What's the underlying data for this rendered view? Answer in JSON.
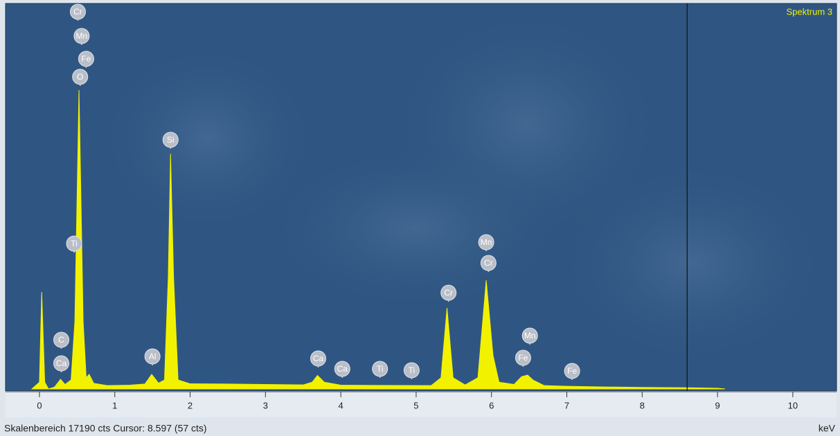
{
  "chart_data": {
    "type": "area",
    "title": "Spektrum 3",
    "x_label": "keV",
    "status": "Skalenbereich 17190 cts Cursor: 8.597  (57 cts)",
    "color": "#f2f200",
    "xlim": [
      -0.45,
      10.58
    ],
    "ylim": [
      0,
      17190
    ],
    "xticks": [
      0,
      1,
      2,
      3,
      4,
      5,
      6,
      7,
      8,
      9,
      10
    ],
    "cursor": 8.597,
    "x": [
      -0.1,
      0.0,
      0.03,
      0.07,
      0.12,
      0.2,
      0.28,
      0.34,
      0.42,
      0.47,
      0.525,
      0.58,
      0.62,
      0.66,
      0.72,
      0.9,
      1.2,
      1.4,
      1.49,
      1.58,
      1.66,
      1.71,
      1.74,
      1.78,
      1.84,
      2.0,
      2.5,
      3.0,
      3.5,
      3.62,
      3.69,
      3.78,
      4.0,
      4.5,
      5.2,
      5.33,
      5.41,
      5.49,
      5.65,
      5.82,
      5.93,
      6.02,
      6.1,
      6.3,
      6.4,
      6.48,
      6.55,
      6.7,
      7.0,
      7.5,
      8.0,
      8.6,
      9.0,
      9.1
    ],
    "values": [
      0,
      300,
      4320,
      300,
      0,
      80,
      430,
      200,
      400,
      3000,
      13330,
      3000,
      500,
      650,
      250,
      150,
      170,
      220,
      650,
      260,
      400,
      5000,
      10490,
      5000,
      400,
      230,
      220,
      200,
      180,
      300,
      600,
      300,
      170,
      160,
      150,
      500,
      3610,
      500,
      180,
      500,
      4845,
      1500,
      300,
      200,
      550,
      620,
      400,
      150,
      120,
      90,
      70,
      55,
      30,
      0
    ],
    "markers": [
      {
        "label": "Cr",
        "x": 0.51,
        "y": 16665
      },
      {
        "label": "Mn",
        "x": 0.56,
        "y": 15585
      },
      {
        "label": "Fe",
        "x": 0.62,
        "y": 14567
      },
      {
        "label": "O",
        "x": 0.54,
        "y": 13764
      },
      {
        "label": "Ti",
        "x": 0.46,
        "y": 6327
      },
      {
        "label": "C",
        "x": 0.29,
        "y": 2037
      },
      {
        "label": "Ca",
        "x": 0.29,
        "y": 988
      },
      {
        "label": "Al",
        "x": 1.5,
        "y": 1296
      },
      {
        "label": "Si",
        "x": 1.74,
        "y": 10956
      },
      {
        "label": "Ca",
        "x": 3.7,
        "y": 1204
      },
      {
        "label": "Ca",
        "x": 4.02,
        "y": 741
      },
      {
        "label": "Ti",
        "x": 4.52,
        "y": 741
      },
      {
        "label": "Ti",
        "x": 4.94,
        "y": 679
      },
      {
        "label": "Cr",
        "x": 5.43,
        "y": 4136
      },
      {
        "label": "Mn",
        "x": 5.93,
        "y": 6389
      },
      {
        "label": "Cr",
        "x": 5.96,
        "y": 5463
      },
      {
        "label": "Mn",
        "x": 6.51,
        "y": 2222
      },
      {
        "label": "Fe",
        "x": 6.42,
        "y": 1234
      },
      {
        "label": "Fe",
        "x": 7.07,
        "y": 648
      }
    ]
  }
}
